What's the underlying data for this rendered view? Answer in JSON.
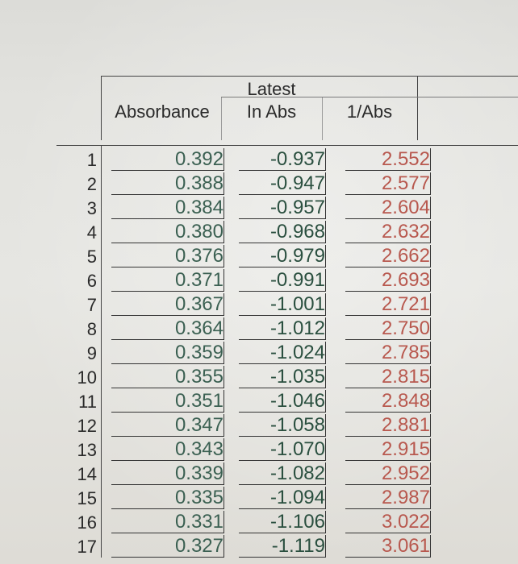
{
  "headers": {
    "col_b_line1": "",
    "col_b_line2": "Absorbance",
    "col_c_line1": "Latest",
    "col_c_line2": "In Abs",
    "col_d_line1": "",
    "col_d_line2": "1/Abs"
  },
  "rows": [
    {
      "n": "1",
      "absorbance": "0.392",
      "ln_abs": "-0.937",
      "inv_abs": "2.552"
    },
    {
      "n": "2",
      "absorbance": "0.388",
      "ln_abs": "-0.947",
      "inv_abs": "2.577"
    },
    {
      "n": "3",
      "absorbance": "0.384",
      "ln_abs": "-0.957",
      "inv_abs": "2.604"
    },
    {
      "n": "4",
      "absorbance": "0.380",
      "ln_abs": "-0.968",
      "inv_abs": "2.632"
    },
    {
      "n": "5",
      "absorbance": "0.376",
      "ln_abs": "-0.979",
      "inv_abs": "2.662"
    },
    {
      "n": "6",
      "absorbance": "0.371",
      "ln_abs": "-0.991",
      "inv_abs": "2.693"
    },
    {
      "n": "7",
      "absorbance": "0.367",
      "ln_abs": "-1.001",
      "inv_abs": "2.721"
    },
    {
      "n": "8",
      "absorbance": "0.364",
      "ln_abs": "-1.012",
      "inv_abs": "2.750"
    },
    {
      "n": "9",
      "absorbance": "0.359",
      "ln_abs": "-1.024",
      "inv_abs": "2.785"
    },
    {
      "n": "10",
      "absorbance": "0.355",
      "ln_abs": "-1.035",
      "inv_abs": "2.815"
    },
    {
      "n": "11",
      "absorbance": "0.351",
      "ln_abs": "-1.046",
      "inv_abs": "2.848"
    },
    {
      "n": "12",
      "absorbance": "0.347",
      "ln_abs": "-1.058",
      "inv_abs": "2.881"
    },
    {
      "n": "13",
      "absorbance": "0.343",
      "ln_abs": "-1.070",
      "inv_abs": "2.915"
    },
    {
      "n": "14",
      "absorbance": "0.339",
      "ln_abs": "-1.082",
      "inv_abs": "2.952"
    },
    {
      "n": "15",
      "absorbance": "0.335",
      "ln_abs": "-1.094",
      "inv_abs": "2.987"
    },
    {
      "n": "16",
      "absorbance": "0.331",
      "ln_abs": "-1.106",
      "inv_abs": "3.022"
    },
    {
      "n": "17",
      "absorbance": "0.327",
      "ln_abs": "-1.119",
      "inv_abs": "3.061"
    }
  ],
  "colors": {
    "absorbance_text": "#3b6052",
    "ln_abs_text": "#2a4f3f",
    "inv_abs_text": "#b8584e",
    "grid": "#444444"
  }
}
